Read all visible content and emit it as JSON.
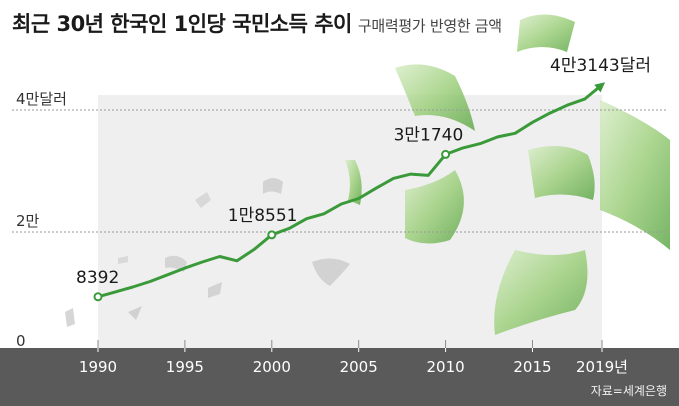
{
  "header": {
    "title": "최근 30년 한국인 1인당 국민소득 추이",
    "subtitle": "구매력평가 반영한 금액"
  },
  "source": "자료=세계은행",
  "colors": {
    "line": "#3a9a3a",
    "footer": "#5a5a5a",
    "shade": "#efefef",
    "money": "#8cc46c"
  },
  "chart_data": {
    "type": "line",
    "title": "최근 30년 한국인 1인당 국민소득 추이",
    "subtitle": "구매력평가 반영한 금액",
    "x": [
      1990,
      1991,
      1992,
      1993,
      1994,
      1995,
      1996,
      1997,
      1998,
      1999,
      2000,
      2001,
      2002,
      2003,
      2004,
      2005,
      2006,
      2007,
      2008,
      2009,
      2010,
      2011,
      2012,
      2013,
      2014,
      2015,
      2016,
      2017,
      2018,
      2019
    ],
    "series": [
      {
        "values": [
          8392,
          9200,
          10000,
          10900,
          12000,
          13100,
          14100,
          15000,
          14300,
          16200,
          18551,
          19600,
          21200,
          22000,
          23600,
          24500,
          26200,
          27800,
          28500,
          28300,
          31740,
          32800,
          33500,
          34600,
          35200,
          37000,
          38500,
          39800,
          40800,
          43143
        ]
      }
    ],
    "x_ticks": [
      "1990",
      "1995",
      "2000",
      "2005",
      "2010",
      "2015",
      "2019년"
    ],
    "y_ticks": [
      "0",
      "2만",
      "4만달러"
    ],
    "ylim": [
      0,
      46000
    ],
    "xlim": [
      1990,
      2019
    ],
    "annotations": [
      {
        "x": 1990,
        "value": 8392,
        "label": "8392"
      },
      {
        "x": 2000,
        "value": 18551,
        "label": "1만8551"
      },
      {
        "x": 2010,
        "value": 31740,
        "label": "3만1740"
      },
      {
        "x": 2019,
        "value": 43143,
        "label": "4만3143달러"
      }
    ],
    "grid": "dotted horizontal at 2만 and 4만",
    "legend": "none"
  }
}
